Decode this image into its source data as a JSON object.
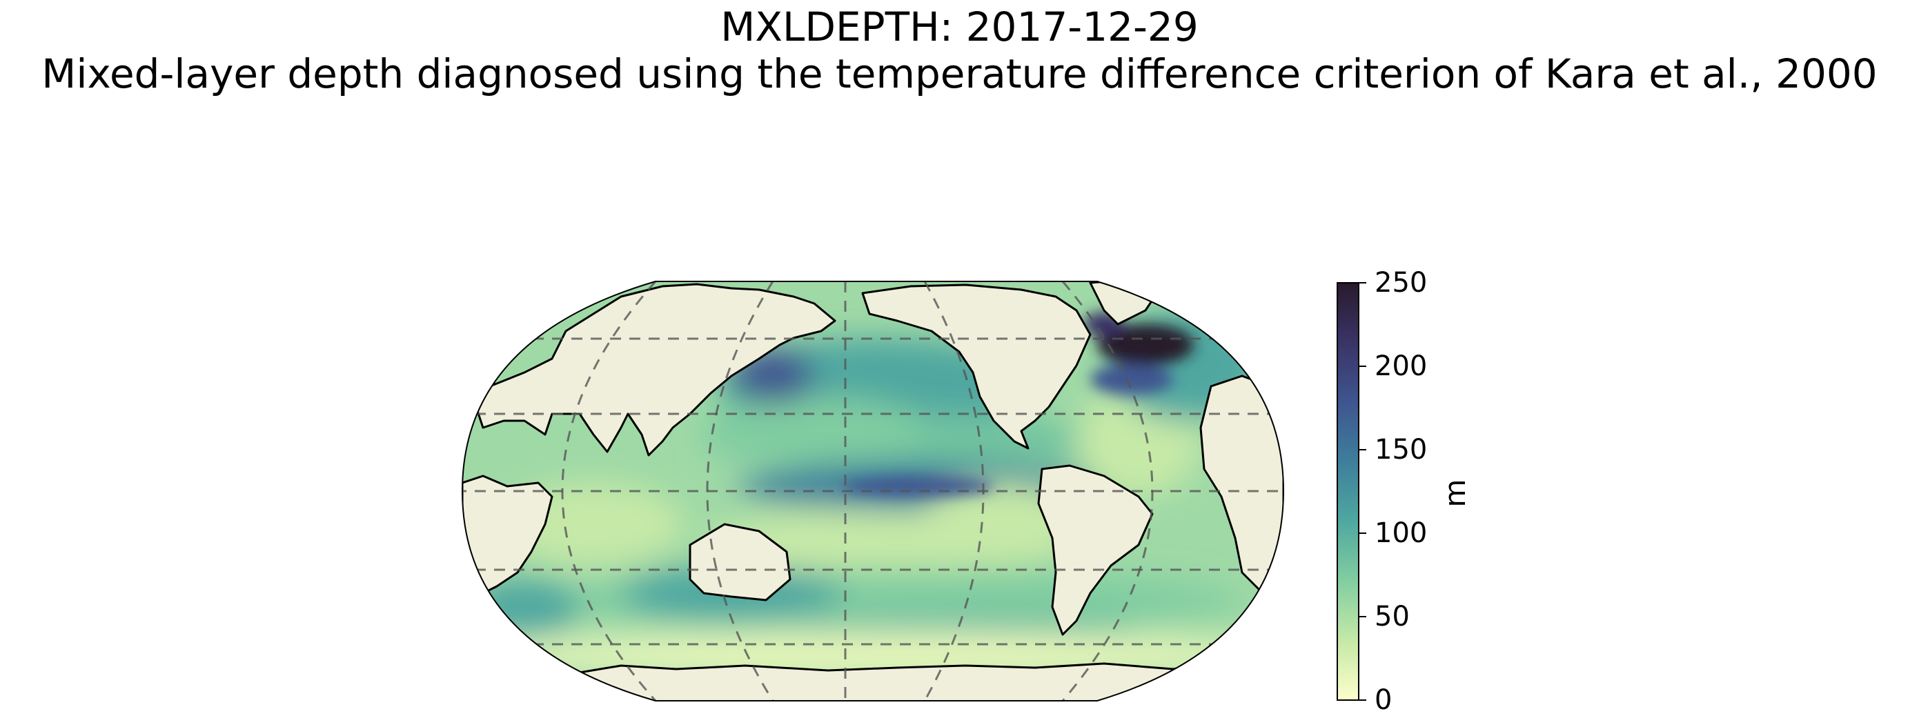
{
  "title": {
    "line1": "MXLDEPTH: 2017-12-29",
    "line2": "Mixed-layer depth diagnosed using the temperature difference criterion of Kara et al., 2000"
  },
  "colorbar": {
    "unit": "m",
    "min": 0,
    "max": 250,
    "ticks": [
      "0",
      "50",
      "100",
      "150",
      "200",
      "250"
    ],
    "colors": [
      "#fdfecc",
      "#c6e9a7",
      "#80cda1",
      "#4fa7a0",
      "#3e7f9c",
      "#3f5690",
      "#3a3366",
      "#281a2c"
    ]
  },
  "map": {
    "projection": "Robinson",
    "central_longitude": 180,
    "land_color": "#efefdb",
    "gridlines": "dashed"
  }
}
